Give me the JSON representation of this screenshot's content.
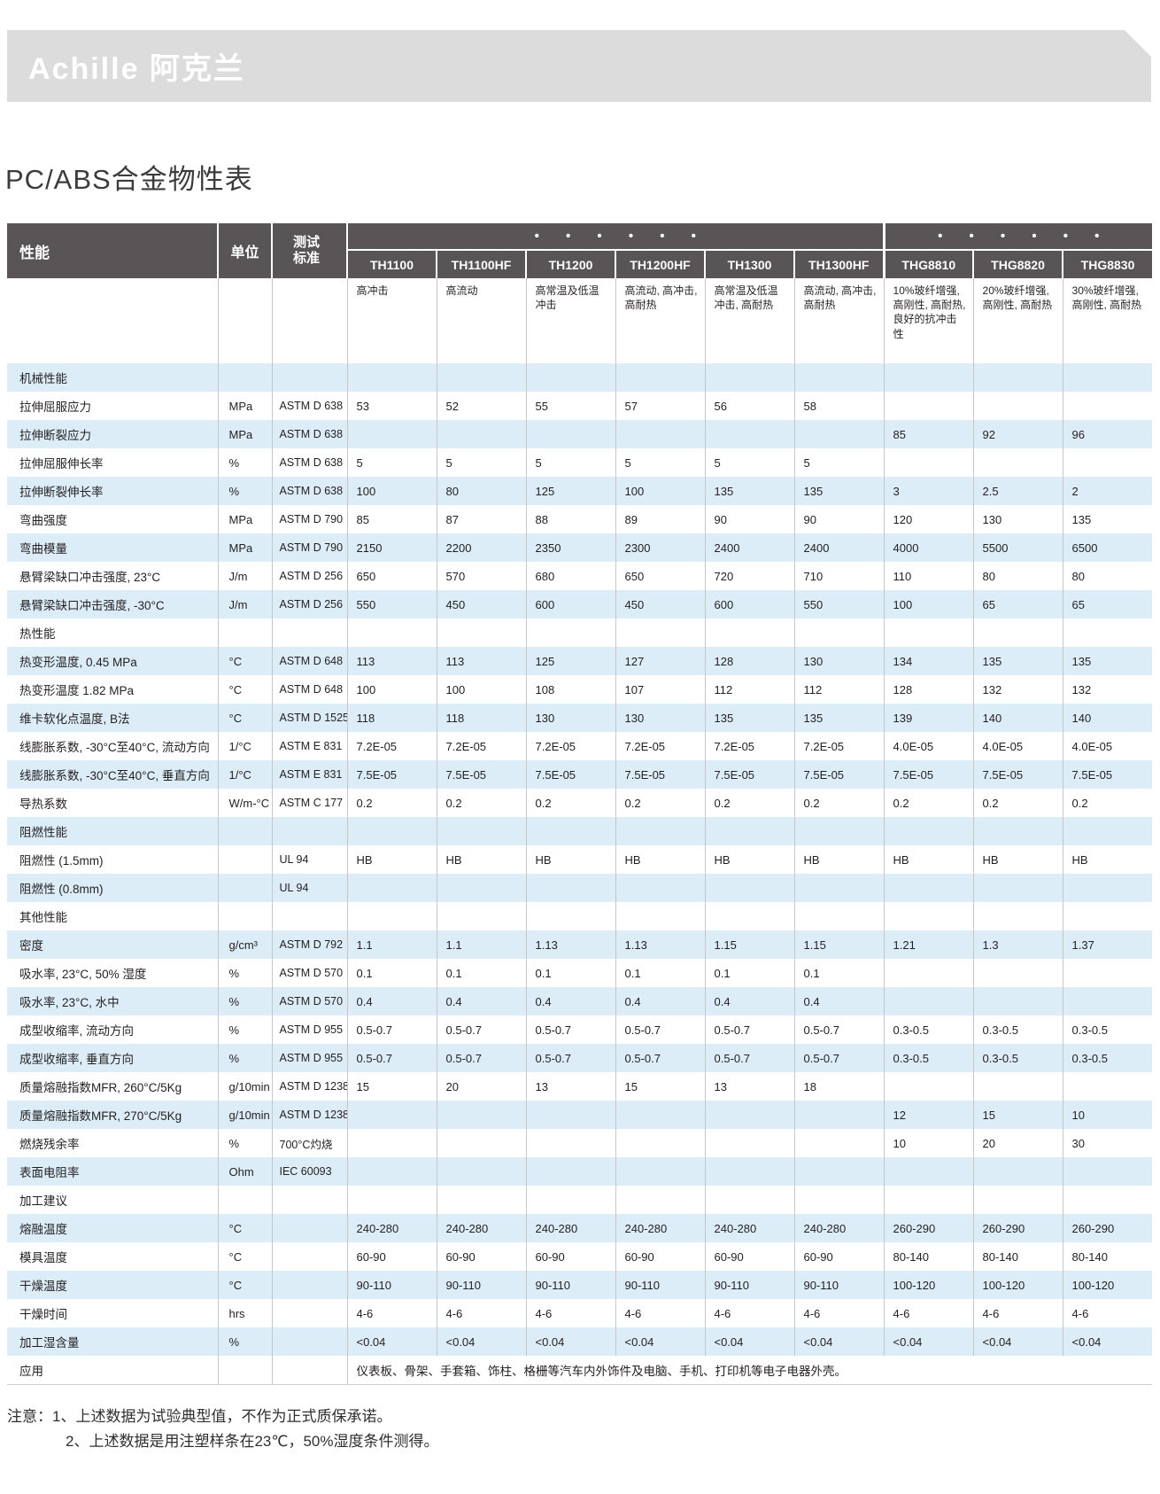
{
  "banner": {
    "brand": "Achille 阿克兰"
  },
  "page": {
    "title": "PC/ABS合金物性表"
  },
  "colors": {
    "banner_bg": "#dcdcdc",
    "header_bg": "#595557",
    "stripe_blue": "#dcedf8",
    "divider": "#c6c6c6",
    "text": "#231f20",
    "header_text": "#ffffff"
  },
  "table": {
    "columns": {
      "property": "性能",
      "unit": "单位",
      "standard": "测试标准"
    },
    "groups": [
      {
        "dots": "• • • • • •",
        "models": [
          "TH1100",
          "TH1100HF",
          "TH1200",
          "TH1200HF",
          "TH1300",
          "TH1300HF"
        ]
      },
      {
        "dots": "• • • • • •",
        "models": [
          "THG8810",
          "THG8820",
          "THG8830"
        ]
      }
    ],
    "descriptions": [
      "高冲击",
      "高流动",
      "高常温及低温冲击",
      "高流动, 高冲击, 高耐热",
      "高常温及低温冲击, 高耐热",
      "高流动, 高冲击, 高耐热",
      "10%玻纤增强, 高刚性, 高耐热, 良好的抗冲击性",
      "20%玻纤增强, 高刚性, 高耐热",
      "30%玻纤增强, 高刚性, 高耐热"
    ],
    "rows": [
      {
        "type": "section",
        "label": "机械性能"
      },
      {
        "label": "拉伸屈服应力",
        "unit": "MPa",
        "standard": "ASTM D 638",
        "values": [
          "53",
          "52",
          "55",
          "57",
          "56",
          "58",
          "",
          "",
          ""
        ]
      },
      {
        "label": "拉伸断裂应力",
        "unit": "MPa",
        "standard": "ASTM D 638",
        "values": [
          "",
          "",
          "",
          "",
          "",
          "",
          "85",
          "92",
          "96"
        ]
      },
      {
        "label": "拉伸屈服伸长率",
        "unit": "%",
        "standard": "ASTM D 638",
        "values": [
          "5",
          "5",
          "5",
          "5",
          "5",
          "5",
          "",
          "",
          ""
        ]
      },
      {
        "label": "拉伸断裂伸长率",
        "unit": "%",
        "standard": "ASTM D 638",
        "values": [
          "100",
          "80",
          "125",
          "100",
          "135",
          "135",
          "3",
          "2.5",
          "2"
        ]
      },
      {
        "label": "弯曲强度",
        "unit": "MPa",
        "standard": "ASTM D 790",
        "values": [
          "85",
          "87",
          "88",
          "89",
          "90",
          "90",
          "120",
          "130",
          "135"
        ]
      },
      {
        "label": "弯曲模量",
        "unit": "MPa",
        "standard": "ASTM D 790",
        "values": [
          "2150",
          "2200",
          "2350",
          "2300",
          "2400",
          "2400",
          "4000",
          "5500",
          "6500"
        ]
      },
      {
        "label": "悬臂梁缺口冲击强度, 23°C",
        "unit": "J/m",
        "standard": "ASTM D 256",
        "values": [
          "650",
          "570",
          "680",
          "650",
          "720",
          "710",
          "110",
          "80",
          "80"
        ]
      },
      {
        "label": "悬臂梁缺口冲击强度, -30°C",
        "unit": "J/m",
        "standard": "ASTM D 256",
        "values": [
          "550",
          "450",
          "600",
          "450",
          "600",
          "550",
          "100",
          "65",
          "65"
        ]
      },
      {
        "type": "section",
        "label": "热性能"
      },
      {
        "label": "热变形温度, 0.45 MPa",
        "unit": "°C",
        "standard": "ASTM D 648",
        "values": [
          "113",
          "113",
          "125",
          "127",
          "128",
          "130",
          "134",
          "135",
          "135"
        ]
      },
      {
        "label": "热变形温度 1.82 MPa",
        "unit": "°C",
        "standard": "ASTM D 648",
        "values": [
          "100",
          "100",
          "108",
          "107",
          "112",
          "112",
          "128",
          "132",
          "132"
        ]
      },
      {
        "label": "维卡软化点温度, B法",
        "unit": "°C",
        "standard": "ASTM D 1525",
        "values": [
          "118",
          "118",
          "130",
          "130",
          "135",
          "135",
          "139",
          "140",
          "140"
        ]
      },
      {
        "label": "线膨胀系数, -30°C至40°C, 流动方向",
        "unit": "1/°C",
        "standard": "ASTM E 831",
        "values": [
          "7.2E-05",
          "7.2E-05",
          "7.2E-05",
          "7.2E-05",
          "7.2E-05",
          "7.2E-05",
          "4.0E-05",
          "4.0E-05",
          "4.0E-05"
        ]
      },
      {
        "label": "线膨胀系数, -30°C至40°C, 垂直方向",
        "unit": "1/°C",
        "standard": "ASTM E 831",
        "values": [
          "7.5E-05",
          "7.5E-05",
          "7.5E-05",
          "7.5E-05",
          "7.5E-05",
          "7.5E-05",
          "7.5E-05",
          "7.5E-05",
          "7.5E-05"
        ]
      },
      {
        "label": "导热系数",
        "unit": "W/m-°C",
        "standard": "ASTM C 177",
        "values": [
          "0.2",
          "0.2",
          "0.2",
          "0.2",
          "0.2",
          "0.2",
          "0.2",
          "0.2",
          "0.2"
        ]
      },
      {
        "type": "section",
        "label": "阻燃性能"
      },
      {
        "label": "阻燃性 (1.5mm)",
        "unit": "",
        "standard": "UL 94",
        "values": [
          "HB",
          "HB",
          "HB",
          "HB",
          "HB",
          "HB",
          "HB",
          "HB",
          "HB"
        ]
      },
      {
        "label": "阻燃性 (0.8mm)",
        "unit": "",
        "standard": "UL 94",
        "values": [
          "",
          "",
          "",
          "",
          "",
          "",
          "",
          "",
          ""
        ]
      },
      {
        "type": "section",
        "label": "其他性能"
      },
      {
        "label": "密度",
        "unit": "g/cm³",
        "standard": "ASTM D 792",
        "values": [
          "1.1",
          "1.1",
          "1.13",
          "1.13",
          "1.15",
          "1.15",
          "1.21",
          "1.3",
          "1.37"
        ]
      },
      {
        "label": "吸水率, 23°C, 50% 湿度",
        "unit": "%",
        "standard": "ASTM D 570",
        "values": [
          "0.1",
          "0.1",
          "0.1",
          "0.1",
          "0.1",
          "0.1",
          "",
          "",
          ""
        ]
      },
      {
        "label": "吸水率, 23°C, 水中",
        "unit": "%",
        "standard": "ASTM D 570",
        "values": [
          "0.4",
          "0.4",
          "0.4",
          "0.4",
          "0.4",
          "0.4",
          "",
          "",
          ""
        ]
      },
      {
        "label": "成型收缩率, 流动方向",
        "unit": "%",
        "standard": "ASTM D 955",
        "values": [
          "0.5-0.7",
          "0.5-0.7",
          "0.5-0.7",
          "0.5-0.7",
          "0.5-0.7",
          "0.5-0.7",
          "0.3-0.5",
          "0.3-0.5",
          "0.3-0.5"
        ]
      },
      {
        "label": "成型收缩率, 垂直方向",
        "unit": "%",
        "standard": "ASTM D 955",
        "values": [
          "0.5-0.7",
          "0.5-0.7",
          "0.5-0.7",
          "0.5-0.7",
          "0.5-0.7",
          "0.5-0.7",
          "0.3-0.5",
          "0.3-0.5",
          "0.3-0.5"
        ]
      },
      {
        "label": "质量熔融指数MFR, 260°C/5Kg",
        "unit": "g/10min",
        "standard": "ASTM D 1238",
        "values": [
          "15",
          "20",
          "13",
          "15",
          "13",
          "18",
          "",
          "",
          ""
        ]
      },
      {
        "label": "质量熔融指数MFR, 270°C/5Kg",
        "unit": "g/10min",
        "standard": "ASTM D 1238",
        "values": [
          "",
          "",
          "",
          "",
          "",
          "",
          "12",
          "15",
          "10"
        ]
      },
      {
        "label": "燃烧残余率",
        "unit": "%",
        "standard": "700°C灼烧",
        "values": [
          "",
          "",
          "",
          "",
          "",
          "",
          "10",
          "20",
          "30"
        ]
      },
      {
        "label": "表面电阻率",
        "unit": "Ohm",
        "standard": "IEC 60093",
        "values": [
          "",
          "",
          "",
          "",
          "",
          "",
          "",
          "",
          ""
        ]
      },
      {
        "type": "section",
        "label": "加工建议"
      },
      {
        "label": "熔融温度",
        "unit": "°C",
        "standard": "",
        "values": [
          "240-280",
          "240-280",
          "240-280",
          "240-280",
          "240-280",
          "240-280",
          "260-290",
          "260-290",
          "260-290"
        ]
      },
      {
        "label": "模具温度",
        "unit": "°C",
        "standard": "",
        "values": [
          "60-90",
          "60-90",
          "60-90",
          "60-90",
          "60-90",
          "60-90",
          "80-140",
          "80-140",
          "80-140"
        ]
      },
      {
        "label": "干燥温度",
        "unit": "°C",
        "standard": "",
        "values": [
          "90-110",
          "90-110",
          "90-110",
          "90-110",
          "90-110",
          "90-110",
          "100-120",
          "100-120",
          "100-120"
        ]
      },
      {
        "label": "干燥时间",
        "unit": "hrs",
        "standard": "",
        "values": [
          "4-6",
          "4-6",
          "4-6",
          "4-6",
          "4-6",
          "4-6",
          "4-6",
          "4-6",
          "4-6"
        ]
      },
      {
        "label": "加工湿含量",
        "unit": "%",
        "standard": "",
        "values": [
          "<0.04",
          "<0.04",
          "<0.04",
          "<0.04",
          "<0.04",
          "<0.04",
          "<0.04",
          "<0.04",
          "<0.04"
        ]
      },
      {
        "type": "span",
        "label": "应用",
        "unit": "",
        "standard": "",
        "span_value": "仪表板、骨架、手套箱、饰柱、格栅等汽车内外饰件及电脑、手机、打印机等电子电器外壳。"
      }
    ]
  },
  "notes": {
    "label": "注意：",
    "lines": [
      "1、上述数据为试验典型值，不作为正式质保承诺。",
      "2、上述数据是用注塑样条在23℃，50%湿度条件测得。"
    ]
  }
}
